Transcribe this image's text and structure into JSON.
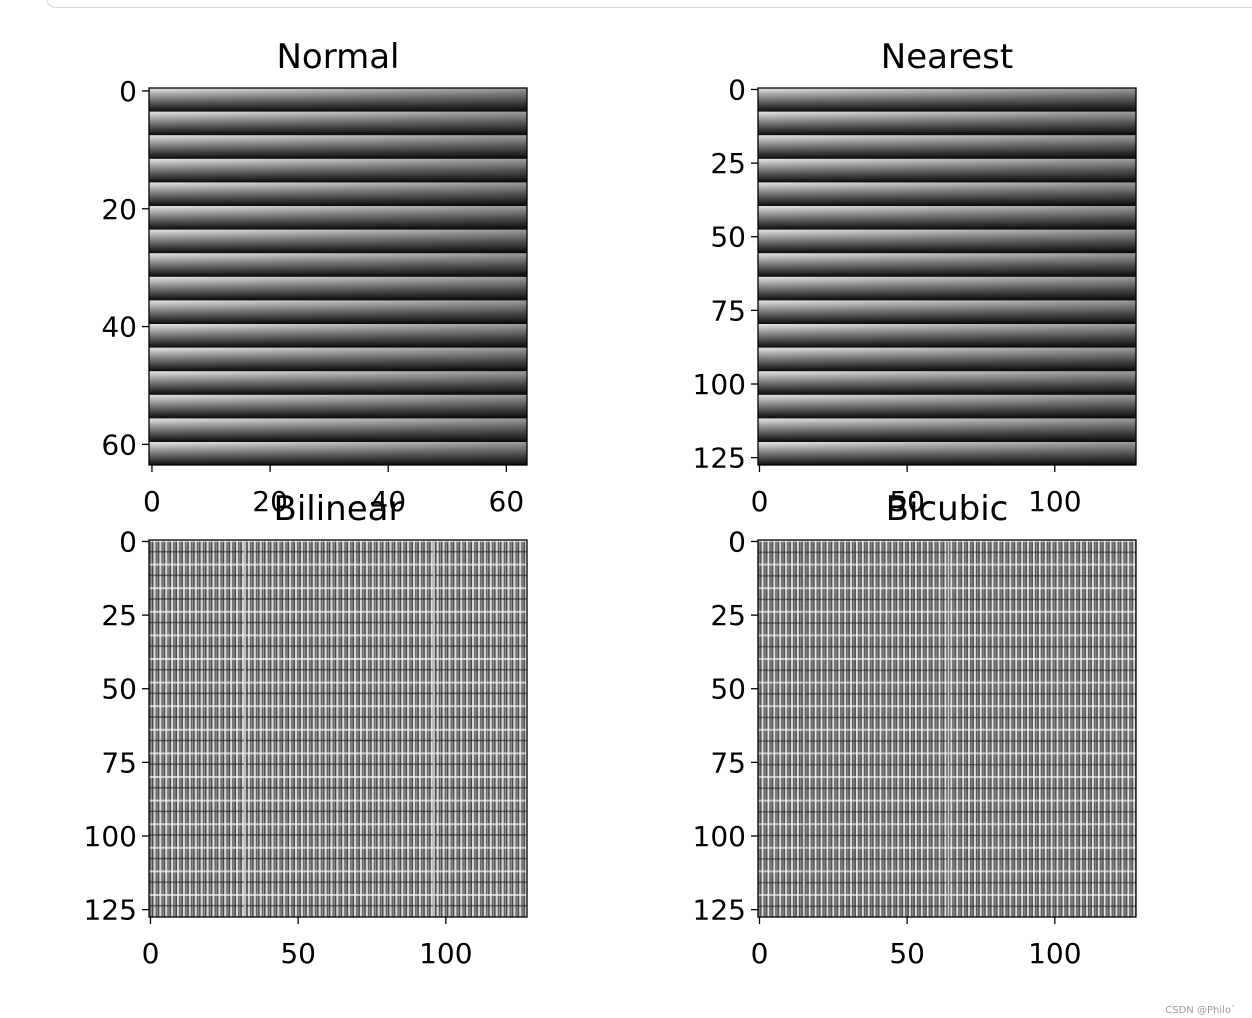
{
  "watermark": "CSDN @Philo`",
  "chart_data": [
    {
      "type": "heatmap",
      "title": "Normal",
      "image_size": 64,
      "pattern": "horizontal stripes",
      "colormap": "gray",
      "xlim": [
        -0.5,
        63.5
      ],
      "ylim": [
        63.5,
        -0.5
      ],
      "xticks": [
        0,
        20,
        40,
        60
      ],
      "yticks": [
        0,
        20,
        40,
        60
      ]
    },
    {
      "type": "heatmap",
      "title": "Nearest",
      "image_size": 128,
      "pattern": "horizontal stripes",
      "colormap": "gray",
      "xlim": [
        -0.5,
        127.5
      ],
      "ylim": [
        127.5,
        -0.5
      ],
      "xticks": [
        0,
        50,
        100
      ],
      "yticks": [
        0,
        25,
        50,
        75,
        100,
        125
      ]
    },
    {
      "type": "heatmap",
      "title": "Bilinear",
      "image_size": 128,
      "pattern": "fine vertical moire",
      "colormap": "gray",
      "xlim": [
        -0.5,
        127.5
      ],
      "ylim": [
        127.5,
        -0.5
      ],
      "xticks": [
        0,
        50,
        100
      ],
      "yticks": [
        0,
        25,
        50,
        75,
        100,
        125
      ]
    },
    {
      "type": "heatmap",
      "title": "Bicubic",
      "image_size": 128,
      "pattern": "fine vertical moire",
      "colormap": "gray",
      "xlim": [
        -0.5,
        127.5
      ],
      "ylim": [
        127.5,
        -0.5
      ],
      "xticks": [
        0,
        50,
        100
      ],
      "yticks": [
        0,
        25,
        50,
        75,
        100,
        125
      ]
    }
  ]
}
